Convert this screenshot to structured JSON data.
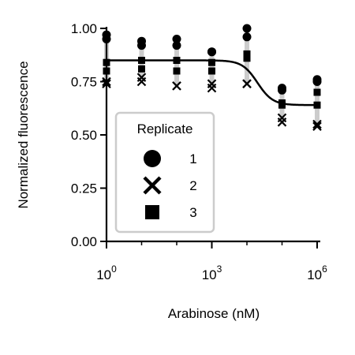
{
  "chart_data": {
    "type": "scatter",
    "xlabel": "Arabinose (nM)",
    "ylabel": "Normalized fluorescence",
    "x_scale": "log",
    "xlim": [
      1,
      1000000
    ],
    "ylim": [
      0,
      1.0
    ],
    "x_ticks": [
      {
        "base": "10",
        "exp": "0"
      },
      {
        "base": "10",
        "exp": "3"
      },
      {
        "base": "10",
        "exp": "6"
      }
    ],
    "y_ticks": [
      "0.00",
      "0.25",
      "0.50",
      "0.75",
      "1.00"
    ],
    "grid": false,
    "legend": {
      "title": "Replicate",
      "placement": "lower-left",
      "entries": [
        {
          "label": "1",
          "marker": "circle"
        },
        {
          "label": "2",
          "marker": "x"
        },
        {
          "label": "3",
          "marker": "square"
        }
      ]
    },
    "colors": {
      "points": "#000000",
      "fit": "#000000",
      "error_bars": "#cccccc"
    },
    "x": [
      1,
      10,
      100,
      1000,
      10000,
      100000,
      1000000
    ],
    "series": [
      {
        "name": "1",
        "marker": "circle",
        "values": [
          0.95,
          0.94,
          0.95,
          0.89,
          1.0,
          0.72,
          0.76
        ]
      },
      {
        "name": "1",
        "marker": "circle",
        "values": [
          0.97,
          0.92,
          0.92,
          0.89,
          0.96,
          0.71,
          0.75
        ]
      },
      {
        "name": "2",
        "marker": "x",
        "values": [
          0.75,
          0.75,
          0.73,
          0.72,
          0.74,
          0.56,
          0.54
        ]
      },
      {
        "name": "2",
        "marker": "x",
        "values": [
          0.74,
          0.77,
          0.73,
          0.74,
          0.74,
          0.58,
          0.55
        ]
      },
      {
        "name": "3",
        "marker": "square",
        "values": [
          0.8,
          0.81,
          0.8,
          0.8,
          0.86,
          0.65,
          0.7
        ]
      },
      {
        "name": "3",
        "marker": "square",
        "values": [
          0.84,
          0.85,
          0.85,
          0.84,
          0.88,
          0.64,
          0.64
        ]
      }
    ],
    "error_bars": [
      {
        "x": 1,
        "low": 0.74,
        "high": 0.97
      },
      {
        "x": 10,
        "low": 0.75,
        "high": 0.94
      },
      {
        "x": 100,
        "low": 0.73,
        "high": 0.95
      },
      {
        "x": 1000,
        "low": 0.72,
        "high": 0.89
      },
      {
        "x": 10000,
        "low": 0.74,
        "high": 1.0
      },
      {
        "x": 100000,
        "low": 0.56,
        "high": 0.72
      },
      {
        "x": 1000000,
        "low": 0.54,
        "high": 0.76
      }
    ],
    "fit": {
      "top": 0.85,
      "bottom": 0.64,
      "ec50": 20000,
      "hill": 2.0
    }
  }
}
